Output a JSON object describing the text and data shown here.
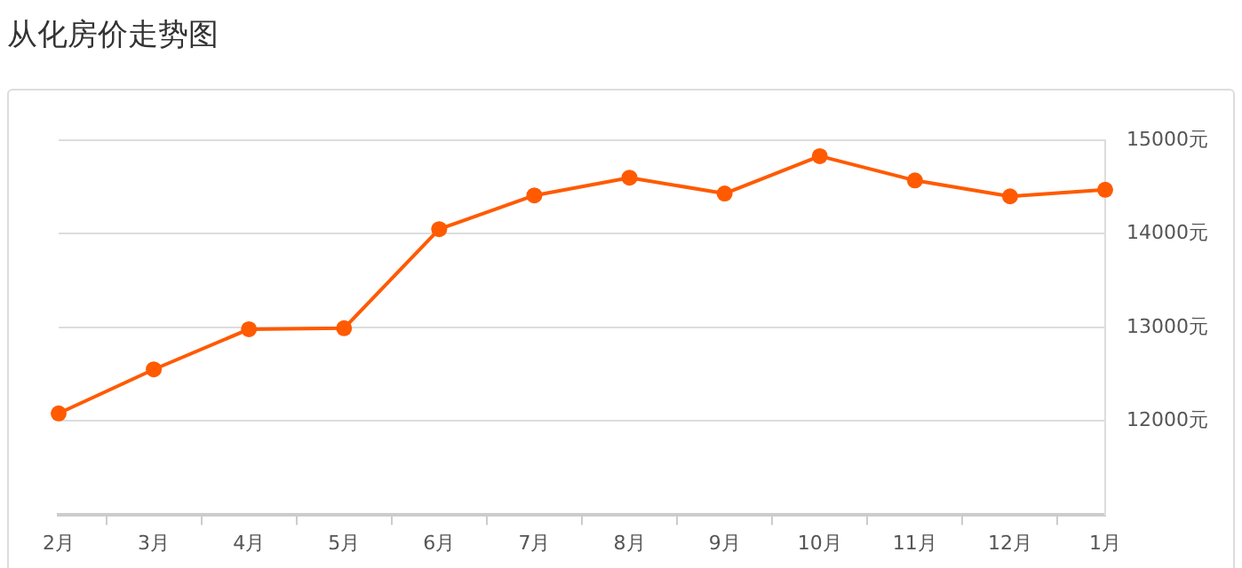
{
  "chart_data": {
    "type": "line",
    "title": "从化房价走势图",
    "categories": [
      "2月",
      "3月",
      "4月",
      "5月",
      "6月",
      "7月",
      "8月",
      "9月",
      "10月",
      "11月",
      "12月",
      "1月"
    ],
    "series": [
      {
        "color": "#ff5a00",
        "values": [
          12080,
          12550,
          12980,
          12990,
          14050,
          14410,
          14600,
          14430,
          14830,
          14570,
          14400,
          14470
        ]
      }
    ],
    "ylim": [
      11000,
      15000
    ],
    "yticks": [
      {
        "value": 12000,
        "label": "12000元"
      },
      {
        "value": 13000,
        "label": "13000元"
      },
      {
        "value": 14000,
        "label": "14000元"
      },
      {
        "value": 15000,
        "label": "15000元"
      }
    ],
    "grid": "y",
    "legend": false,
    "marker": "circle",
    "line_style": "solid"
  }
}
